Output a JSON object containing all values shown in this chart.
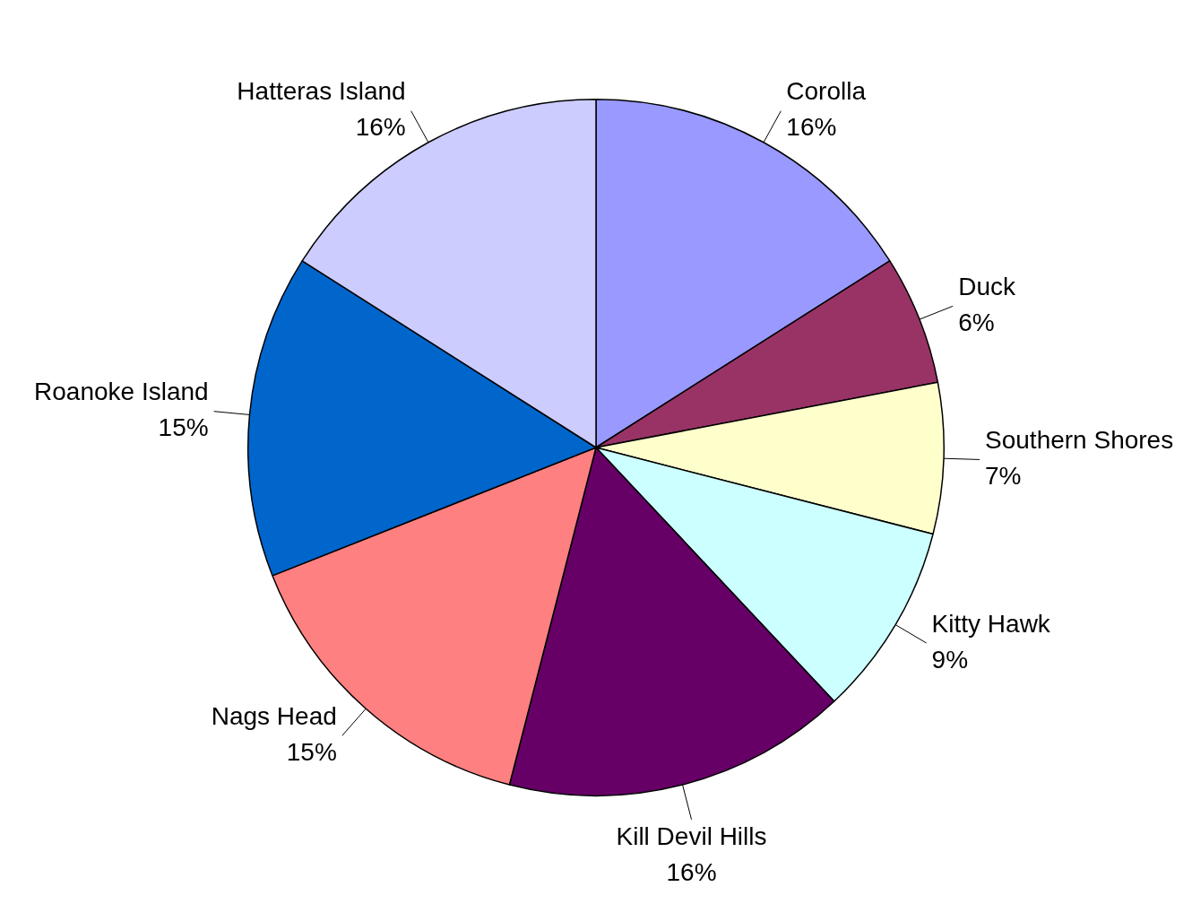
{
  "chart_data": {
    "type": "pie",
    "categories": [
      "Corolla",
      "Duck",
      "Southern Shores",
      "Kitty Hawk",
      "Kill Devil Hills",
      "Nags Head",
      "Roanoke Island",
      "Hatteras Island"
    ],
    "values": [
      16,
      6,
      7,
      9,
      16,
      15,
      15,
      16
    ],
    "colors": [
      "#9999ff",
      "#993366",
      "#ffffcc",
      "#ccffff",
      "#660066",
      "#ff8080",
      "#0066cc",
      "#ccccff"
    ],
    "value_labels": [
      "16%",
      "6%",
      "7%",
      "9%",
      "16%",
      "15%",
      "15%",
      "16%"
    ],
    "legend": false
  }
}
